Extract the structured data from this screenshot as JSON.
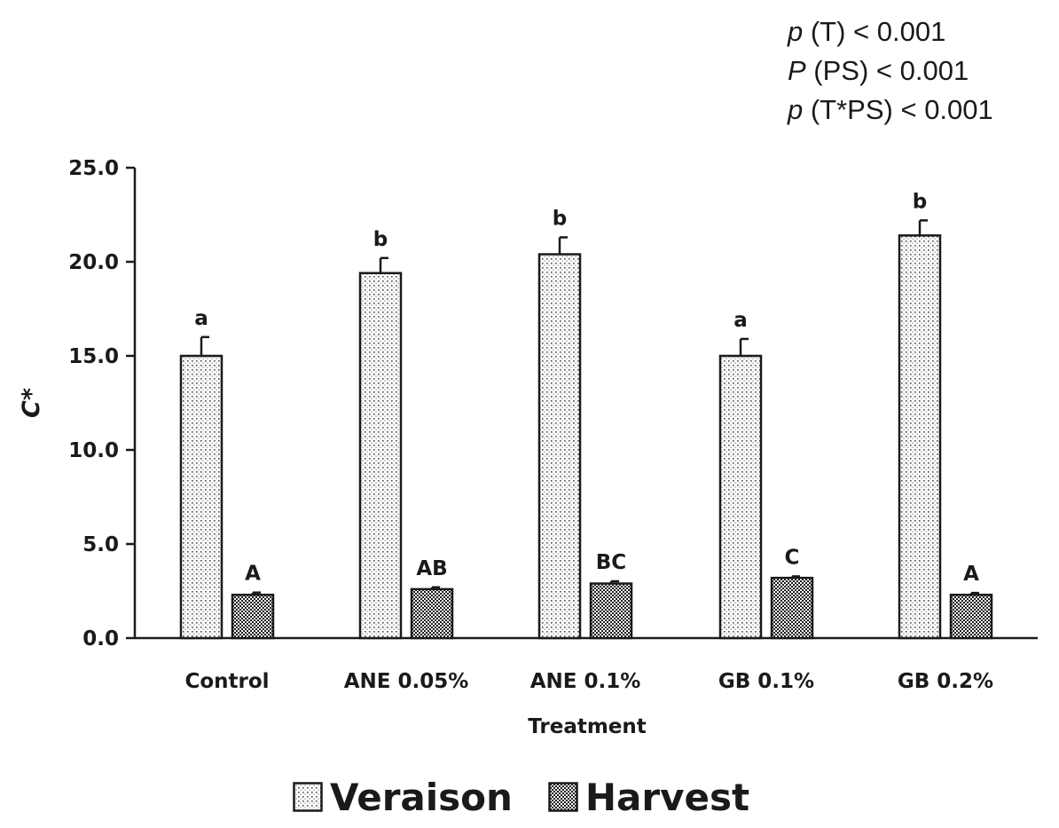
{
  "stats": [
    {
      "var": "p",
      "rest": " (T) < 0.001"
    },
    {
      "var": "P",
      "rest": " (PS) < 0.001"
    },
    {
      "var": "p",
      "rest": " (T*PS) < 0.001"
    }
  ],
  "chart_data": {
    "type": "bar",
    "xlabel": "Treatment",
    "ylabel": "C*",
    "ylim": [
      0,
      25
    ],
    "yticks": [
      "0.0",
      "5.0",
      "10.0",
      "15.0",
      "20.0",
      "25.0"
    ],
    "categories": [
      "Control",
      "ANE 0.05%",
      "ANE 0.1%",
      "GB 0.1%",
      "GB 0.2%"
    ],
    "series": [
      {
        "name": "Veraison",
        "pattern": "sparse-dots",
        "values": [
          15.0,
          19.4,
          20.4,
          15.0,
          21.4
        ],
        "errors": [
          1.0,
          0.8,
          0.9,
          0.9,
          0.8
        ],
        "letters": [
          "a",
          "b",
          "b",
          "a",
          "b"
        ]
      },
      {
        "name": "Harvest",
        "pattern": "checkered",
        "values": [
          2.3,
          2.6,
          2.9,
          3.2,
          2.3
        ],
        "errors": [
          0.12,
          0.1,
          0.12,
          0.08,
          0.1
        ],
        "letters": [
          "A",
          "AB",
          "BC",
          "C",
          "A"
        ]
      }
    ],
    "legend_position": "bottom",
    "grid": false
  }
}
